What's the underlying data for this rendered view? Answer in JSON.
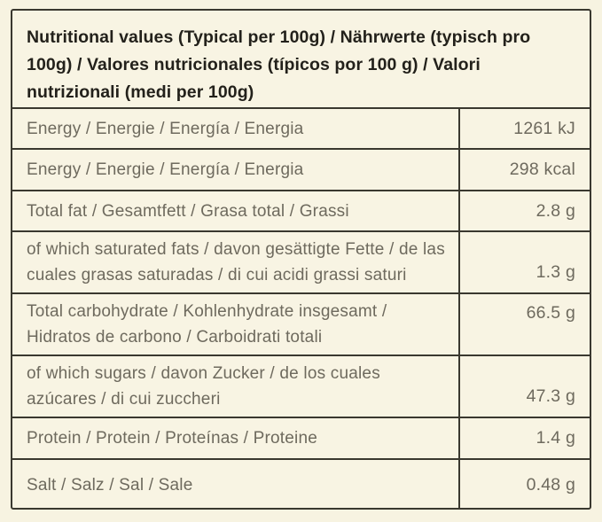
{
  "page": {
    "background_color": "#f7f3e1"
  },
  "table": {
    "title": "Nutritional values (Typical per 100g) / Nährwerte (typisch pro 100g) / Valores nutricionales (típicos por 100 g) / Valori nutrizionali (medi per 100g)",
    "colors": {
      "panel_background": "#f8f4e3",
      "border": "#3a382f",
      "row_text": "#6e6a5e",
      "title_text": "#23211b"
    },
    "rows": [
      {
        "label": "Energy / Energie / Energía / Energia",
        "value": "1261 kJ"
      },
      {
        "label": "Energy / Energie / Energía / Energia",
        "value": "298 kcal"
      },
      {
        "label": "Total fat / Gesamtfett / Grasa total / Grassi",
        "value": "2.8 g"
      },
      {
        "label": "of which saturated fats / davon gesättigte Fette / de las cuales grasas saturadas / di cui acidi grassi saturi",
        "value": "1.3 g"
      },
      {
        "label": "Total carbohydrate / Kohlenhydrate insgesamt / Hidratos de carbono / Carboidrati totali",
        "value": "66.5 g"
      },
      {
        "label": "of which sugars / davon Zucker / de los cuales azúcares / di cui zuccheri",
        "value": "47.3 g"
      },
      {
        "label": "Protein / Protein / Proteínas / Proteine",
        "value": "1.4 g"
      },
      {
        "label": "Salt / Salz / Sal / Sale",
        "value": "0.48 g"
      }
    ]
  }
}
